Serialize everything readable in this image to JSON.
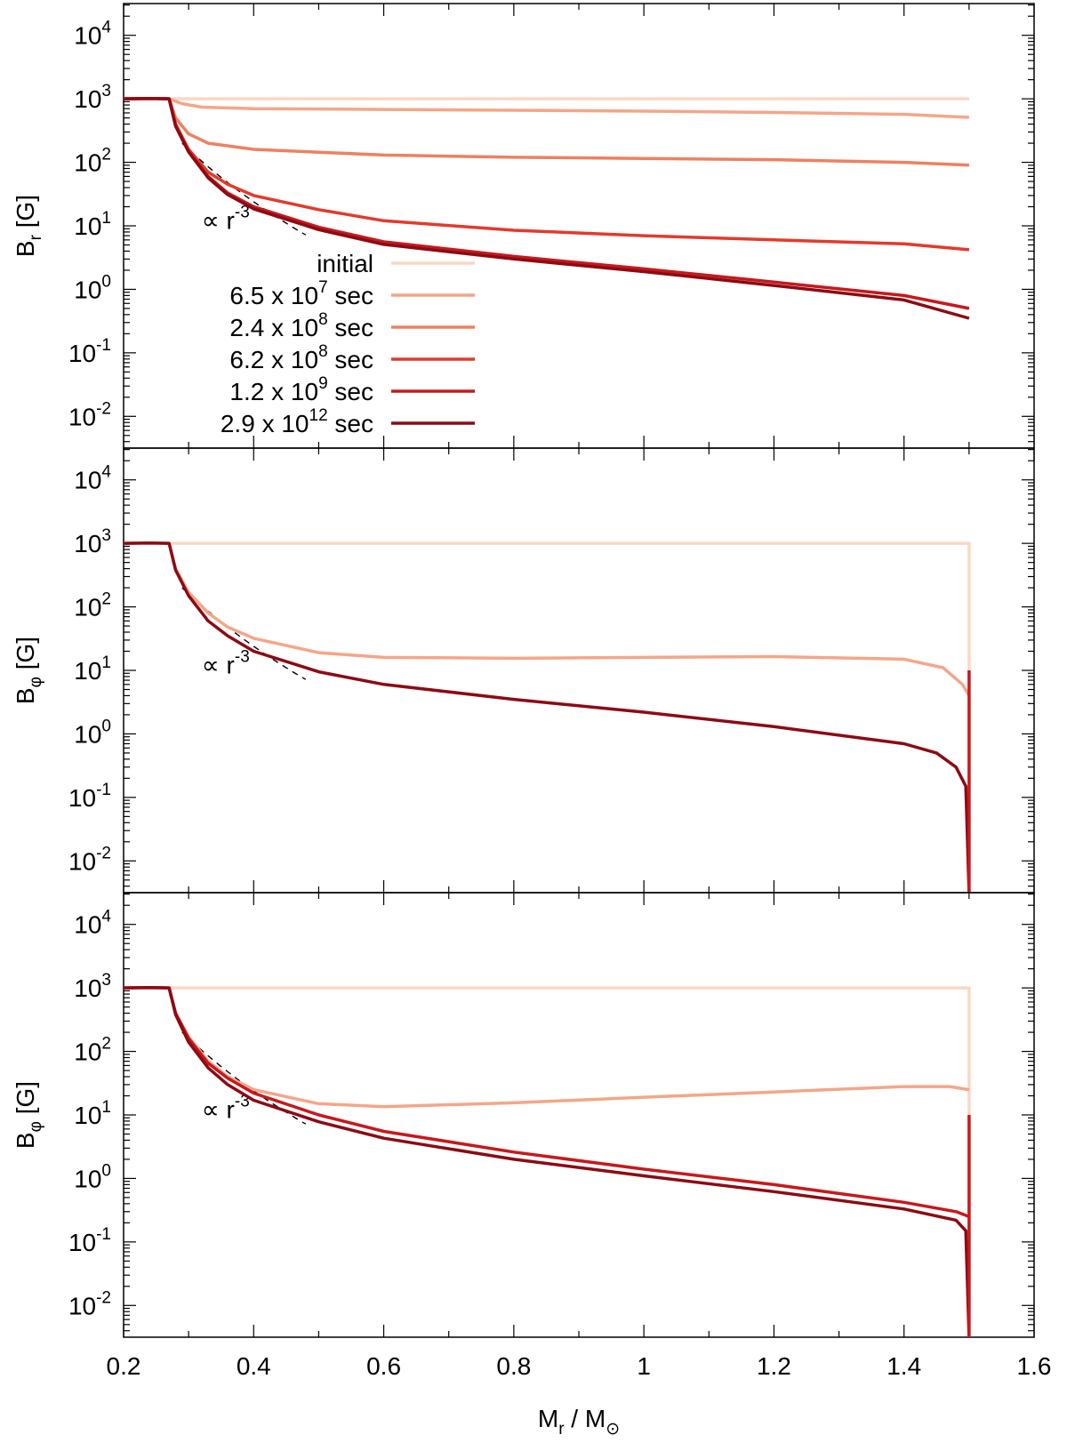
{
  "chart_data": [
    {
      "type": "line",
      "ylabel": {
        "base": "B",
        "sub": "r",
        "unit": " [G]"
      },
      "xlim": [
        0.2,
        1.6
      ],
      "ylim_log10": [
        -2.5,
        4.5
      ],
      "yscale": "log",
      "xticks": [
        0.2,
        0.4,
        0.6,
        0.8,
        1,
        1.2,
        1.4,
        1.6
      ],
      "yticks_exp": [
        "4",
        "3",
        "2",
        "1",
        "0",
        "-1",
        "-2"
      ],
      "annotation": {
        "prefix": "∝ r",
        "exp": "-3"
      },
      "guide": {
        "x_start": 0.29,
        "x_end": 0.48,
        "y_start": 200,
        "exponent": -3
      },
      "legend": {
        "placement": "upper-left, below annotation"
      },
      "series": [
        {
          "name": "initial",
          "color": "#fbd7c4",
          "points": [
            [
              0.2,
              1000
            ],
            [
              0.24,
              1010
            ],
            [
              0.27,
              1000
            ],
            [
              0.6,
              1000
            ],
            [
              1.0,
              1000
            ],
            [
              1.5,
              1000
            ]
          ]
        },
        {
          "name": "6.5 x 10^7 sec",
          "color": "#f4a688",
          "points": [
            [
              0.2,
              1000
            ],
            [
              0.24,
              1010
            ],
            [
              0.27,
              1000
            ],
            [
              0.29,
              840
            ],
            [
              0.32,
              740
            ],
            [
              0.4,
              700
            ],
            [
              0.6,
              680
            ],
            [
              0.8,
              660
            ],
            [
              1.0,
              640
            ],
            [
              1.2,
              610
            ],
            [
              1.4,
              570
            ],
            [
              1.5,
              510
            ]
          ]
        },
        {
          "name": "2.4 x 10^8 sec",
          "color": "#ee8062",
          "points": [
            [
              0.2,
              1000
            ],
            [
              0.24,
              1010
            ],
            [
              0.27,
              1000
            ],
            [
              0.28,
              500
            ],
            [
              0.3,
              280
            ],
            [
              0.33,
              200
            ],
            [
              0.4,
              160
            ],
            [
              0.6,
              130
            ],
            [
              0.8,
              120
            ],
            [
              1.0,
              115
            ],
            [
              1.2,
              110
            ],
            [
              1.4,
              100
            ],
            [
              1.5,
              90
            ]
          ]
        },
        {
          "name": "6.2 x 10^8 sec",
          "color": "#e33a2c",
          "points": [
            [
              0.2,
              1000
            ],
            [
              0.24,
              1010
            ],
            [
              0.27,
              1000
            ],
            [
              0.28,
              400
            ],
            [
              0.3,
              160
            ],
            [
              0.33,
              70
            ],
            [
              0.36,
              45
            ],
            [
              0.4,
              30
            ],
            [
              0.5,
              18
            ],
            [
              0.6,
              12
            ],
            [
              0.8,
              8.5
            ],
            [
              1.0,
              7
            ],
            [
              1.2,
              6
            ],
            [
              1.4,
              5.2
            ],
            [
              1.5,
              4.2
            ]
          ]
        },
        {
          "name": "1.2 x 10^9 sec",
          "color": "#c8181c",
          "points": [
            [
              0.2,
              1000
            ],
            [
              0.24,
              1010
            ],
            [
              0.27,
              1000
            ],
            [
              0.28,
              380
            ],
            [
              0.3,
              150
            ],
            [
              0.33,
              60
            ],
            [
              0.36,
              33
            ],
            [
              0.4,
              20
            ],
            [
              0.5,
              9.5
            ],
            [
              0.6,
              5.6
            ],
            [
              0.8,
              3.3
            ],
            [
              1.0,
              2.1
            ],
            [
              1.2,
              1.3
            ],
            [
              1.4,
              0.8
            ],
            [
              1.5,
              0.5
            ]
          ]
        },
        {
          "name": "2.9 x 10^12 sec",
          "color": "#8c0b14",
          "points": [
            [
              0.2,
              1000
            ],
            [
              0.24,
              1010
            ],
            [
              0.27,
              1000
            ],
            [
              0.28,
              370
            ],
            [
              0.3,
              145
            ],
            [
              0.33,
              57
            ],
            [
              0.36,
              31
            ],
            [
              0.4,
              18.5
            ],
            [
              0.5,
              8.7
            ],
            [
              0.6,
              5.1
            ],
            [
              0.8,
              3.0
            ],
            [
              1.0,
              1.9
            ],
            [
              1.2,
              1.15
            ],
            [
              1.4,
              0.68
            ],
            [
              1.5,
              0.35
            ]
          ]
        }
      ]
    },
    {
      "type": "line",
      "ylabel": {
        "base": "B",
        "sub": "φ",
        "unit": " [G]"
      },
      "xlim": [
        0.2,
        1.6
      ],
      "ylim_log10": [
        -2.5,
        4.5
      ],
      "yscale": "log",
      "xticks": [
        0.2,
        0.4,
        0.6,
        0.8,
        1,
        1.2,
        1.4,
        1.6
      ],
      "yticks_exp": [
        "4",
        "3",
        "2",
        "1",
        "0",
        "-1",
        "-2"
      ],
      "annotation": {
        "prefix": "∝ r",
        "exp": "-3"
      },
      "guide": {
        "x_start": 0.29,
        "x_end": 0.48,
        "y_start": 200,
        "exponent": -3
      },
      "series": [
        {
          "name": "initial",
          "color": "#fbd7c4",
          "points": [
            [
              0.2,
              1000
            ],
            [
              0.24,
              1010
            ],
            [
              0.27,
              1000
            ],
            [
              0.6,
              1000
            ],
            [
              1.0,
              1000
            ],
            [
              1.5,
              1000
            ],
            [
              1.5,
              0.003
            ]
          ]
        },
        {
          "name": "6.5 x 10^7 sec",
          "color": "#f4a688",
          "points": [
            [
              0.2,
              1000
            ],
            [
              0.24,
              1010
            ],
            [
              0.27,
              1000
            ],
            [
              0.28,
              400
            ],
            [
              0.3,
              170
            ],
            [
              0.33,
              80
            ],
            [
              0.36,
              48
            ],
            [
              0.4,
              32
            ],
            [
              0.5,
              19
            ],
            [
              0.6,
              16
            ],
            [
              0.8,
              15.5
            ],
            [
              1.0,
              16
            ],
            [
              1.2,
              16.5
            ],
            [
              1.4,
              15
            ],
            [
              1.46,
              11
            ],
            [
              1.49,
              6
            ],
            [
              1.5,
              4
            ]
          ]
        },
        {
          "name": "2.9 x 10^12 sec",
          "color": "#8c0b14",
          "points": [
            [
              0.2,
              1000
            ],
            [
              0.24,
              1010
            ],
            [
              0.27,
              1000
            ],
            [
              0.28,
              380
            ],
            [
              0.3,
              150
            ],
            [
              0.33,
              60
            ],
            [
              0.36,
              35
            ],
            [
              0.4,
              20
            ],
            [
              0.5,
              9.5
            ],
            [
              0.6,
              6
            ],
            [
              0.8,
              3.5
            ],
            [
              1.0,
              2.2
            ],
            [
              1.2,
              1.3
            ],
            [
              1.4,
              0.7
            ],
            [
              1.45,
              0.5
            ],
            [
              1.48,
              0.3
            ],
            [
              1.495,
              0.15
            ],
            [
              1.5,
              0.003
            ]
          ]
        },
        {
          "name": "spike",
          "color": "#c8181c",
          "points": [
            [
              1.5,
              0.003
            ],
            [
              1.5,
              10
            ]
          ]
        }
      ]
    },
    {
      "type": "line",
      "ylabel": {
        "base": "B",
        "sub": "φ",
        "unit": " [G]"
      },
      "xlabel": {
        "base1": "M",
        "sub1": "r",
        "mid": " / M",
        "sub2": "⊙"
      },
      "xlim": [
        0.2,
        1.6
      ],
      "ylim_log10": [
        -2.5,
        4.5
      ],
      "yscale": "log",
      "xticks": [
        0.2,
        0.4,
        0.6,
        0.8,
        1,
        1.2,
        1.4,
        1.6
      ],
      "xtick_labels": [
        "0.2",
        "0.4",
        "0.6",
        "0.8",
        "1",
        "1.2",
        "1.4",
        "1.6"
      ],
      "yticks_exp": [
        "4",
        "3",
        "2",
        "1",
        "0",
        "-1",
        "-2"
      ],
      "annotation": {
        "prefix": "∝ r",
        "exp": "-3"
      },
      "guide": {
        "x_start": 0.29,
        "x_end": 0.48,
        "y_start": 200,
        "exponent": -3
      },
      "series": [
        {
          "name": "initial",
          "color": "#fbd7c4",
          "points": [
            [
              0.2,
              1000
            ],
            [
              0.24,
              1010
            ],
            [
              0.27,
              1000
            ],
            [
              0.6,
              1000
            ],
            [
              1.0,
              1000
            ],
            [
              1.5,
              1000
            ],
            [
              1.5,
              0.003
            ]
          ]
        },
        {
          "name": "6.5 x 10^7 sec",
          "color": "#f4a688",
          "points": [
            [
              0.2,
              1000
            ],
            [
              0.24,
              1010
            ],
            [
              0.27,
              1000
            ],
            [
              0.28,
              400
            ],
            [
              0.3,
              170
            ],
            [
              0.33,
              70
            ],
            [
              0.36,
              40
            ],
            [
              0.4,
              25
            ],
            [
              0.5,
              15
            ],
            [
              0.6,
              13.5
            ],
            [
              0.8,
              15.5
            ],
            [
              1.0,
              19
            ],
            [
              1.2,
              23
            ],
            [
              1.4,
              28
            ],
            [
              1.47,
              28
            ],
            [
              1.5,
              25
            ]
          ]
        },
        {
          "name": "1.2 x 10^9 sec",
          "color": "#c8181c",
          "points": [
            [
              0.2,
              1000
            ],
            [
              0.24,
              1010
            ],
            [
              0.27,
              1000
            ],
            [
              0.28,
              400
            ],
            [
              0.3,
              160
            ],
            [
              0.33,
              65
            ],
            [
              0.36,
              38
            ],
            [
              0.4,
              22
            ],
            [
              0.5,
              10
            ],
            [
              0.6,
              5.5
            ],
            [
              0.8,
              2.6
            ],
            [
              1.0,
              1.4
            ],
            [
              1.2,
              0.8
            ],
            [
              1.4,
              0.42
            ],
            [
              1.48,
              0.3
            ],
            [
              1.5,
              0.25
            ]
          ]
        },
        {
          "name": "2.9 x 10^12 sec",
          "color": "#8c0b14",
          "points": [
            [
              0.2,
              1000
            ],
            [
              0.24,
              1010
            ],
            [
              0.27,
              1000
            ],
            [
              0.28,
              380
            ],
            [
              0.3,
              140
            ],
            [
              0.33,
              55
            ],
            [
              0.36,
              30
            ],
            [
              0.4,
              17
            ],
            [
              0.5,
              7.8
            ],
            [
              0.6,
              4.3
            ],
            [
              0.8,
              2.0
            ],
            [
              1.0,
              1.1
            ],
            [
              1.2,
              0.62
            ],
            [
              1.4,
              0.33
            ],
            [
              1.48,
              0.22
            ],
            [
              1.495,
              0.15
            ],
            [
              1.5,
              0.003
            ]
          ]
        },
        {
          "name": "spike",
          "color": "#c8181c",
          "points": [
            [
              1.5,
              0.003
            ],
            [
              1.5,
              10
            ]
          ]
        }
      ]
    }
  ],
  "legend": [
    {
      "text": "initial",
      "exp": "",
      "suffix": "",
      "color": "#fbd7c4"
    },
    {
      "text": "6.5 x 10",
      "exp": "7",
      "suffix": " sec",
      "color": "#f4a688"
    },
    {
      "text": "2.4 x 10",
      "exp": "8",
      "suffix": " sec",
      "color": "#ee8062"
    },
    {
      "text": "6.2 x 10",
      "exp": "8",
      "suffix": " sec",
      "color": "#e33a2c"
    },
    {
      "text": "1.2 x 10",
      "exp": "9",
      "suffix": " sec",
      "color": "#c8181c"
    },
    {
      "text": "2.9 x 10",
      "exp": "12",
      "suffix": " sec",
      "color": "#8c0b14"
    }
  ],
  "tick_base": "10"
}
